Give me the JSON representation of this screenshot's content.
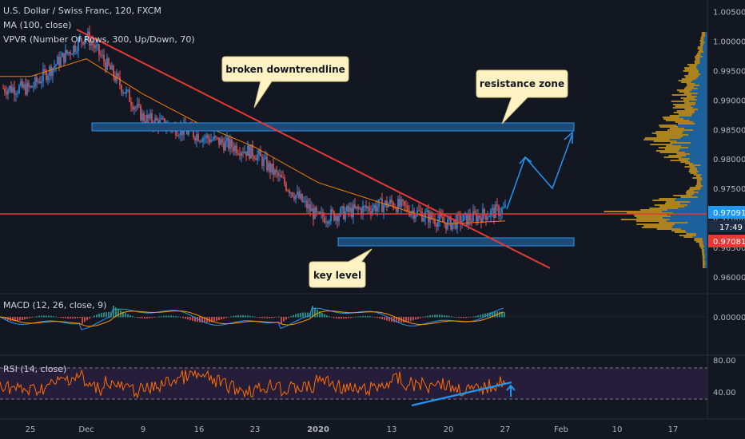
{
  "header": {
    "symbol": "U.S. Dollar / Swiss Franc, 120, FXCM",
    "ma": "MA (100, close)",
    "vpvr": "VPVR (Number Of Rows, 300, Up/Down, 70)"
  },
  "macd_label": "MACD (12, 26, close, 9)",
  "rsi_label": "RSI (14, close)",
  "annotations": {
    "trendline_callout": "broken downtrendline",
    "resistance_callout": "resistance zone",
    "keylevel_callout": "key level"
  },
  "price_badges": {
    "current": "0.97091",
    "countdown": "17:49",
    "line": "0.97081"
  },
  "colors": {
    "background": "#131722",
    "up_candle": "#2196f3",
    "down_candle": "#ef5350",
    "ma_line": "#f57c00",
    "trendline": "#e53935",
    "zone": "#1e4a7a",
    "rsi_line": "#ff6d00",
    "macd_line": "#2196f3",
    "signal_line": "#ff9800",
    "projection": "#2196f3"
  },
  "chart_data": [
    {
      "type": "line",
      "title": "U.S. Dollar / Swiss Franc, 120, FXCM",
      "y_ticks": [
        "1.00500",
        "1.00000",
        "0.99500",
        "0.99000",
        "0.98500",
        "0.98000",
        "0.97500",
        "0.97000",
        "0.96500",
        "0.96000"
      ],
      "x_ticks": [
        "25",
        "Dec",
        "9",
        "16",
        "23",
        "2020",
        "13",
        "20",
        "27",
        "Feb",
        "10",
        "17"
      ],
      "ylim": [
        0.9585,
        1.0063
      ],
      "series": [
        {
          "name": "",
          "x": [
            "25",
            "Dec",
            "9",
            "16",
            "23",
            "2020",
            "13",
            "20",
            "27"
          ],
          "values": [
            0.992,
            1.001,
            0.987,
            0.984,
            0.981,
            0.97,
            0.9725,
            0.969,
            0.9715
          ]
        },
        {
          "name": "MA (100, close)",
          "x": [
            "25",
            "Dec",
            "9",
            "16",
            "23",
            "2020",
            "13",
            "20",
            "27"
          ],
          "values": [
            0.994,
            0.997,
            0.991,
            0.986,
            0.982,
            0.976,
            0.972,
            0.969,
            0.9695
          ]
        }
      ],
      "levels": {
        "resistance_zone": [
          0.9856,
          0.9866
        ],
        "key_level_zone": [
          0.9666,
          0.9676
        ],
        "horizontal_line": 0.97081
      },
      "grid": false
    },
    {
      "type": "line",
      "title": "MACD (12, 26, close, 9)",
      "y_ticks": [
        "0.00000"
      ],
      "grid": false
    },
    {
      "type": "line",
      "title": "RSI (14, close)",
      "y_ticks": [
        "80.00",
        "40.00"
      ],
      "levels": {
        "upper": 70,
        "lower": 30
      },
      "grid": false
    }
  ]
}
